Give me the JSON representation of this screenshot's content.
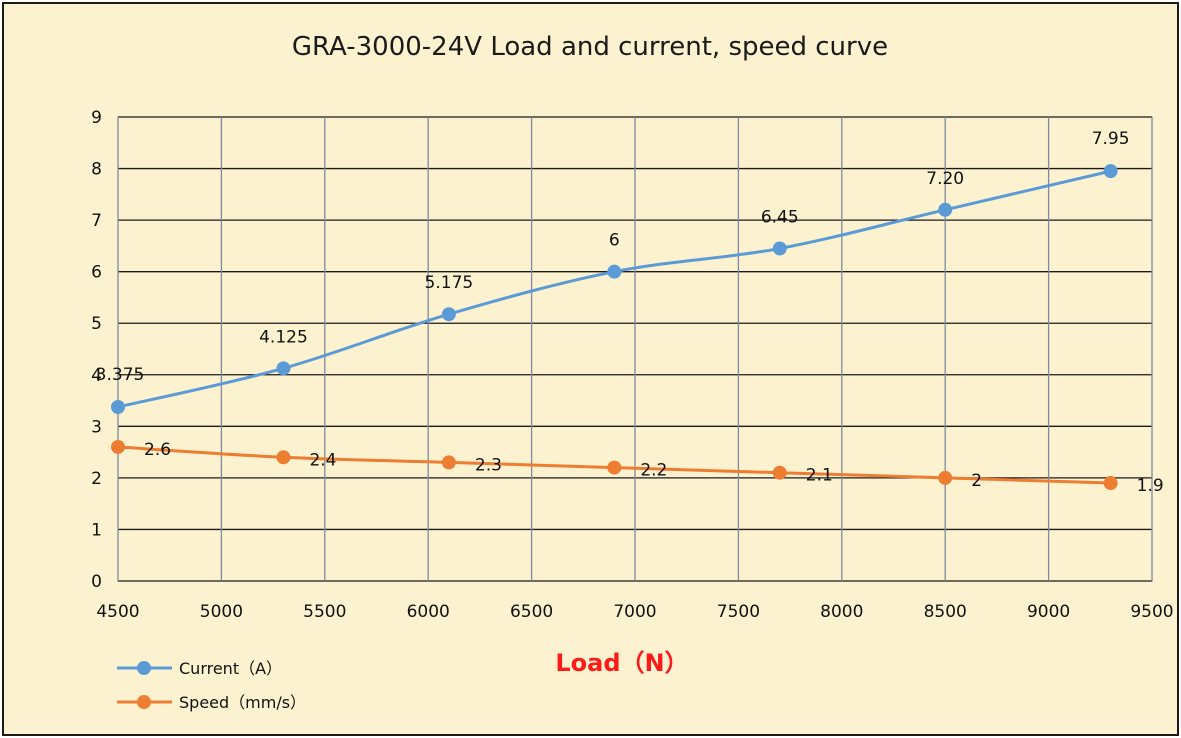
{
  "chart_data": {
    "type": "line",
    "title": "GRA-3000-24V Load and current, speed curve",
    "xlabel": "Load（N）",
    "ylabel": "",
    "xlim": [
      4500,
      9500
    ],
    "ylim": [
      0,
      9
    ],
    "x_ticks": [
      4500,
      5000,
      5500,
      6000,
      6500,
      7000,
      7500,
      8000,
      8500,
      9000,
      9500
    ],
    "y_ticks": [
      0,
      1,
      2,
      3,
      4,
      5,
      6,
      7,
      8,
      9
    ],
    "grid": true,
    "legend_position": "bottom-left",
    "series": [
      {
        "name": "Current（A）",
        "color": "#5b9bd5",
        "x": [
          4500,
          5300,
          6100,
          6900,
          7700,
          8500,
          9300
        ],
        "y": [
          3.375,
          4.125,
          5.175,
          6,
          6.45,
          7.2,
          7.95
        ],
        "labels": [
          "3.375",
          "4.125",
          "5.175",
          "6",
          "6.45",
          "7.20",
          "7.95"
        ]
      },
      {
        "name": "Speed（mm/s）",
        "color": "#ed7d31",
        "x": [
          4500,
          5300,
          6100,
          6900,
          7700,
          8500,
          9300
        ],
        "y": [
          2.6,
          2.4,
          2.3,
          2.2,
          2.1,
          2,
          1.9
        ],
        "labels": [
          "2.6",
          "2.4",
          "2.3",
          "2.2",
          "2.1",
          "2",
          "1.9"
        ]
      }
    ]
  }
}
